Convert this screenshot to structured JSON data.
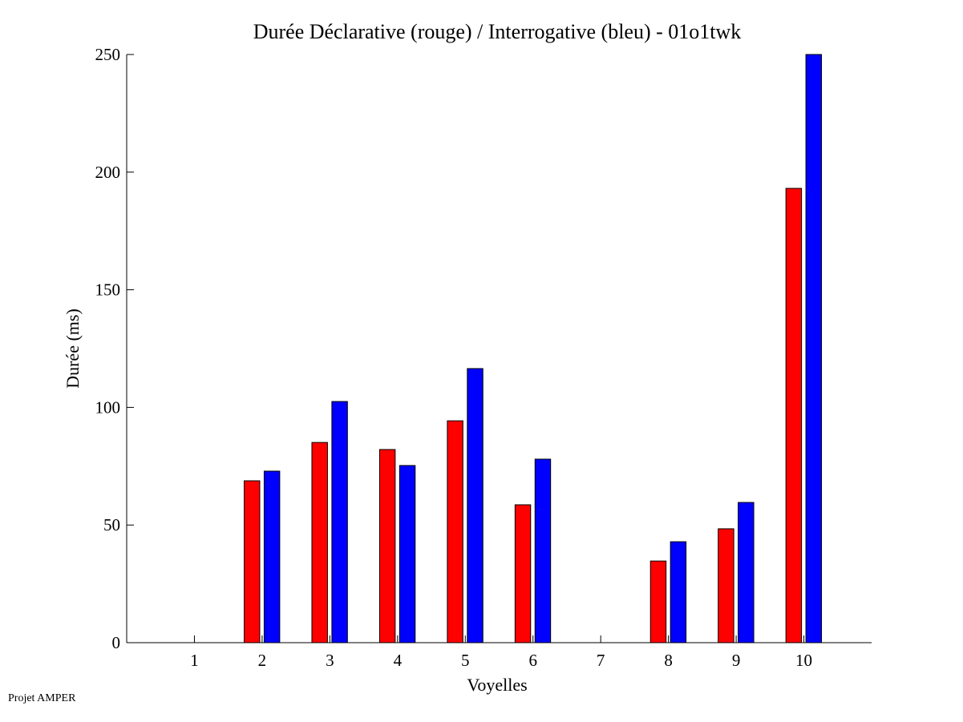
{
  "chart_data": {
    "type": "bar",
    "title": "Durée Déclarative (rouge) / Interrogative (bleu) - 01o1twk",
    "xlabel": "Voyelles",
    "ylabel": "Durée (ms)",
    "categories": [
      "1",
      "2",
      "3",
      "4",
      "5",
      "6",
      "7",
      "8",
      "9",
      "10"
    ],
    "series": [
      {
        "name": "Déclarative (rouge)",
        "color": "#ff0000",
        "values": [
          null,
          68.8,
          85.1,
          82.1,
          94.3,
          58.6,
          null,
          34.7,
          48.4,
          193.1
        ]
      },
      {
        "name": "Interrogative (bleu)",
        "color": "#0000ff",
        "values": [
          null,
          72.9,
          102.5,
          75.3,
          116.5,
          78.0,
          null,
          42.9,
          59.6,
          250
        ]
      }
    ],
    "xlim": [
      0,
      11
    ],
    "ylim": [
      0,
      250
    ],
    "yticks": [
      "0",
      "50",
      "100",
      "150",
      "200",
      "250"
    ],
    "grid": false
  },
  "footer": "Projet AMPER"
}
